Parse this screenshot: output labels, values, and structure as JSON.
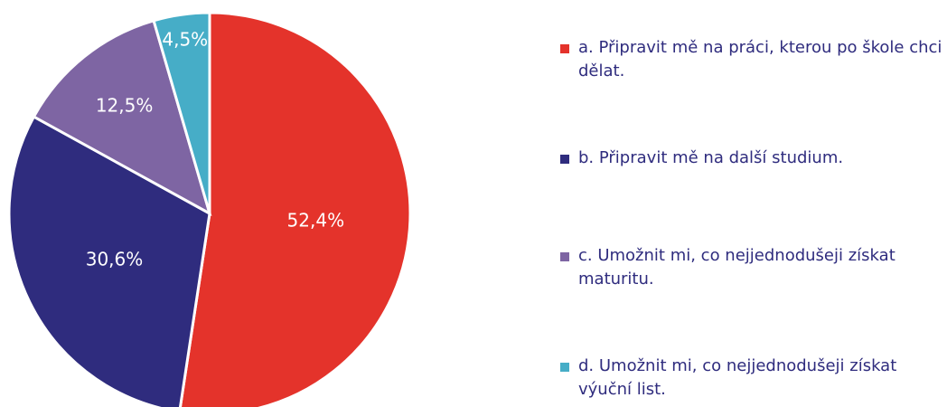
{
  "chart_data": {
    "type": "pie",
    "categories": [
      "a. Připravit mě na práci, kterou po škole chci dělat.",
      "b. Připravit mě na další studium.",
      "c. Umožnit mi, co nejjednodušeji získat maturitu.",
      "d. Umožnit mi, co nejjednodušeji získat výuční list."
    ],
    "values": [
      52.4,
      30.6,
      12.5,
      4.5
    ],
    "value_labels": [
      "52,4%",
      "30,6%",
      "12,5%",
      "4,5%"
    ],
    "colors": [
      "#e4332b",
      "#2f2c7e",
      "#7e65a3",
      "#46adc7"
    ],
    "legend": "right"
  }
}
